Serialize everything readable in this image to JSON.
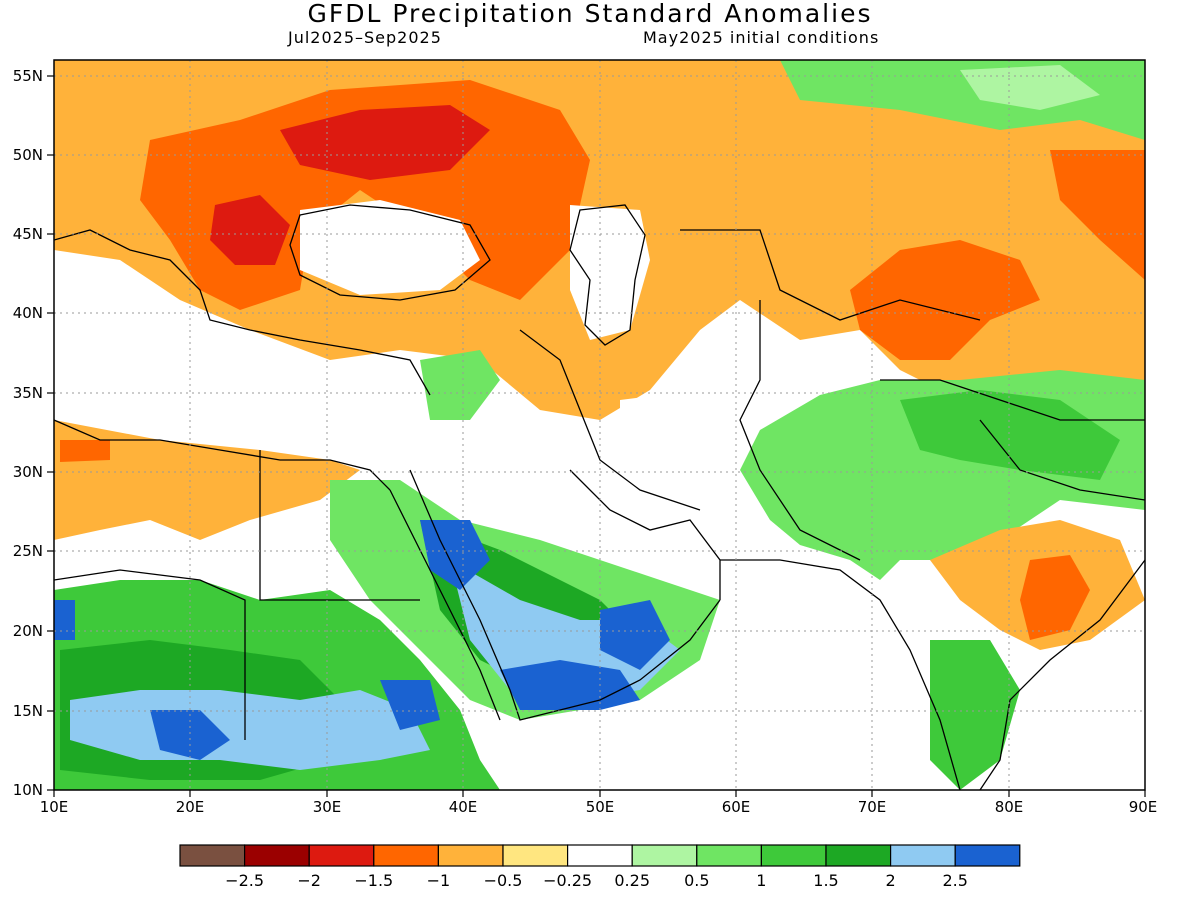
{
  "title": "GFDL Precipitation Standard Anomalies",
  "subtitle_left": "Jul2025–Sep2025",
  "subtitle_right": "May2025 initial conditions",
  "x_ticks": [
    "10E",
    "20E",
    "30E",
    "40E",
    "50E",
    "60E",
    "70E",
    "80E",
    "90E"
  ],
  "y_ticks": [
    "55N",
    "50N",
    "45N",
    "40N",
    "35N",
    "30N",
    "25N",
    "20N",
    "15N",
    "10N"
  ],
  "colorbar": {
    "colors": [
      "#7a5040",
      "#9b0000",
      "#dd1a10",
      "#ff6600",
      "#ffb23a",
      "#ffe680",
      "#ffffff",
      "#aef5a2",
      "#6fe563",
      "#3ec93a",
      "#1da824",
      "#8fcaf2",
      "#1a62d1"
    ],
    "labels": [
      "−2.5",
      "−2",
      "−1.5",
      "−1",
      "−0.5",
      "−0.25",
      "0.25",
      "0.5",
      "1",
      "1.5",
      "2",
      "2.5"
    ]
  }
}
